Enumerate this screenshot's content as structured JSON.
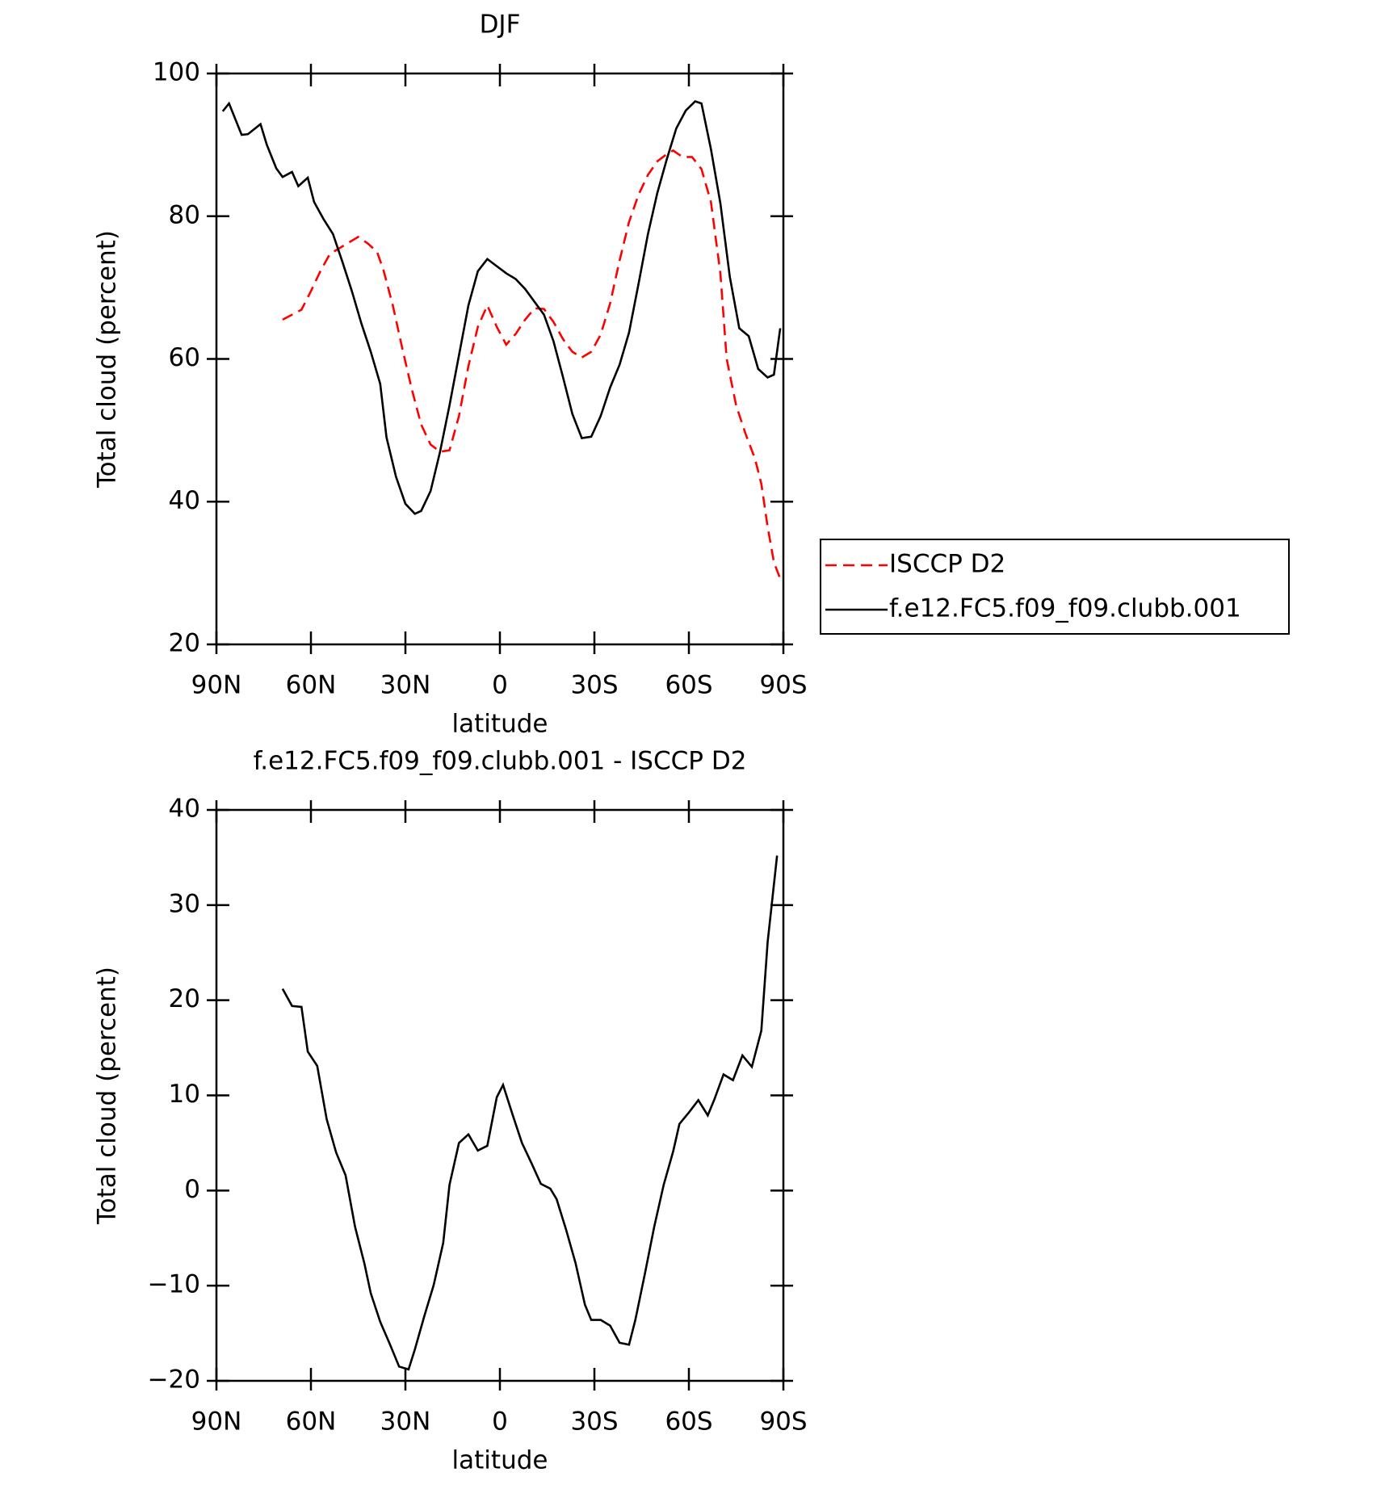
{
  "chart_data": [
    {
      "type": "line",
      "title": "DJF",
      "xlabel": "latitude",
      "ylabel": "Total cloud (percent)",
      "xlim": [
        90,
        -90
      ],
      "ylim": [
        20,
        100
      ],
      "xticks": [
        {
          "value": 90,
          "label": "90N"
        },
        {
          "value": 60,
          "label": "60N"
        },
        {
          "value": 30,
          "label": "30N"
        },
        0,
        {
          "value": -30,
          "label": "30S"
        },
        {
          "value": -60,
          "label": "60S"
        },
        {
          "value": -90,
          "label": "90S"
        }
      ],
      "yticks": [
        20,
        40,
        60,
        80,
        100
      ],
      "legend": "outside-right",
      "series": [
        {
          "name": "ISCCP D2",
          "color": "#ff0000",
          "dash": "dashed",
          "x": [
            69,
            63,
            60,
            57,
            54,
            51,
            48,
            45,
            42,
            39,
            37,
            34,
            31,
            28,
            25,
            22,
            19,
            16,
            13,
            10,
            7,
            4,
            1,
            -2,
            -5,
            -8,
            -11,
            -14,
            -17,
            -20,
            -23,
            -26,
            -29,
            -32,
            -35,
            -38,
            -41,
            -44,
            -47,
            -50,
            -53,
            -55,
            -58,
            -61,
            -64,
            -67,
            -70,
            -72,
            -75,
            -78,
            -81,
            -83,
            -85,
            -87,
            -89
          ],
          "values": [
            65.5,
            66.9,
            69.5,
            72.3,
            74.7,
            75.5,
            76.3,
            77.1,
            76.2,
            75,
            72.5,
            67.5,
            61.5,
            55.8,
            50.8,
            48,
            47,
            47.2,
            52,
            59,
            64.5,
            67.5,
            64.5,
            62,
            63.5,
            65.5,
            67.1,
            67,
            65.2,
            62.8,
            61,
            60.2,
            61,
            63.4,
            67.8,
            73.8,
            79.2,
            83,
            85.8,
            87.7,
            88.7,
            89.2,
            88.3,
            88.3,
            86.6,
            82,
            72,
            60,
            53.5,
            49.5,
            46,
            42.5,
            36.5,
            31.5,
            29.2
          ]
        },
        {
          "name": "f.e12.FC5.f09_f09.clubb.001",
          "color": "#000000",
          "dash": "solid",
          "x": [
            88,
            86,
            82,
            80,
            76,
            74,
            71,
            69,
            66,
            64,
            61,
            59,
            56,
            53,
            50,
            47,
            44,
            41,
            38,
            36,
            33,
            30,
            27,
            25,
            22,
            19,
            16,
            13,
            10,
            7,
            4,
            1,
            -2,
            -5,
            -8,
            -11,
            -14,
            -17,
            -20,
            -23,
            -26,
            -29,
            -32,
            -35,
            -38,
            -41,
            -44,
            -47,
            -50,
            -53,
            -56,
            -59,
            -62,
            -64,
            -67,
            -70,
            -73,
            -76,
            -79,
            -82,
            -85,
            -87,
            -89
          ],
          "values": [
            94.7,
            95.8,
            91.4,
            91.5,
            92.9,
            90,
            86.7,
            85.5,
            86.2,
            84.2,
            85.4,
            82,
            79.6,
            77.5,
            73.6,
            69.5,
            65,
            61,
            56.5,
            49,
            43.5,
            39.7,
            38.3,
            38.7,
            41.5,
            47,
            53.5,
            60.5,
            67.5,
            72.3,
            74,
            73,
            72,
            71.2,
            69.8,
            68,
            66.2,
            62.5,
            57.5,
            52.3,
            48.9,
            49.1,
            52,
            56,
            59.2,
            63.7,
            70.5,
            77.5,
            83.3,
            88,
            92.3,
            94.8,
            96.1,
            95.8,
            89.4,
            81.8,
            71.5,
            64.3,
            63.2,
            58.6,
            57.4,
            57.8,
            64.3
          ]
        }
      ]
    },
    {
      "type": "line",
      "title": "f.e12.FC5.f09_f09.clubb.001 - ISCCP D2",
      "xlabel": "latitude",
      "ylabel": "Total cloud (percent)",
      "xlim": [
        90,
        -90
      ],
      "ylim": [
        -20,
        40
      ],
      "xticks": [
        {
          "value": 90,
          "label": "90N"
        },
        {
          "value": 60,
          "label": "60N"
        },
        {
          "value": 30,
          "label": "30N"
        },
        0,
        {
          "value": -30,
          "label": "30S"
        },
        {
          "value": -60,
          "label": "60S"
        },
        {
          "value": -90,
          "label": "90S"
        }
      ],
      "yticks": [
        {
          "value": -20,
          "label": "−20"
        },
        {
          "value": -10,
          "label": "−10"
        },
        0,
        10,
        20,
        30,
        40
      ],
      "series": [
        {
          "color": "#000000",
          "dash": "solid",
          "x": [
            69,
            66,
            63,
            61,
            58,
            55,
            52,
            49,
            46,
            43,
            41,
            38,
            35,
            32,
            29,
            27,
            24,
            21,
            18,
            16,
            13,
            10,
            7,
            4,
            1,
            -1,
            -4,
            -7,
            -10,
            -13,
            -16,
            -18,
            -21,
            -24,
            -27,
            -29,
            -32,
            -35,
            -38,
            -41,
            -43,
            -46,
            -49,
            -52,
            -55,
            -57,
            -60,
            -63,
            -66,
            -68,
            -71,
            -74,
            -77,
            -80,
            -83,
            -85,
            -88
          ],
          "values": [
            21.2,
            19.4,
            19.3,
            14.6,
            13.1,
            7.5,
            4,
            1.6,
            -3.8,
            -7.7,
            -10.8,
            -13.8,
            -16.1,
            -18.5,
            -18.8,
            -16.7,
            -13.2,
            -9.9,
            -5.5,
            0.6,
            5,
            5.9,
            4.2,
            4.7,
            9.8,
            11.1,
            8,
            5,
            2.9,
            0.7,
            0.2,
            -0.9,
            -4.1,
            -7.6,
            -12,
            -13.6,
            -13.6,
            -14.2,
            -16,
            -16.2,
            -13.6,
            -8.8,
            -3.8,
            0.6,
            4.1,
            7,
            8.2,
            9.5,
            7.9,
            9.5,
            12.2,
            11.6,
            14.2,
            13,
            16.8,
            26.1,
            35.2
          ]
        }
      ]
    }
  ]
}
